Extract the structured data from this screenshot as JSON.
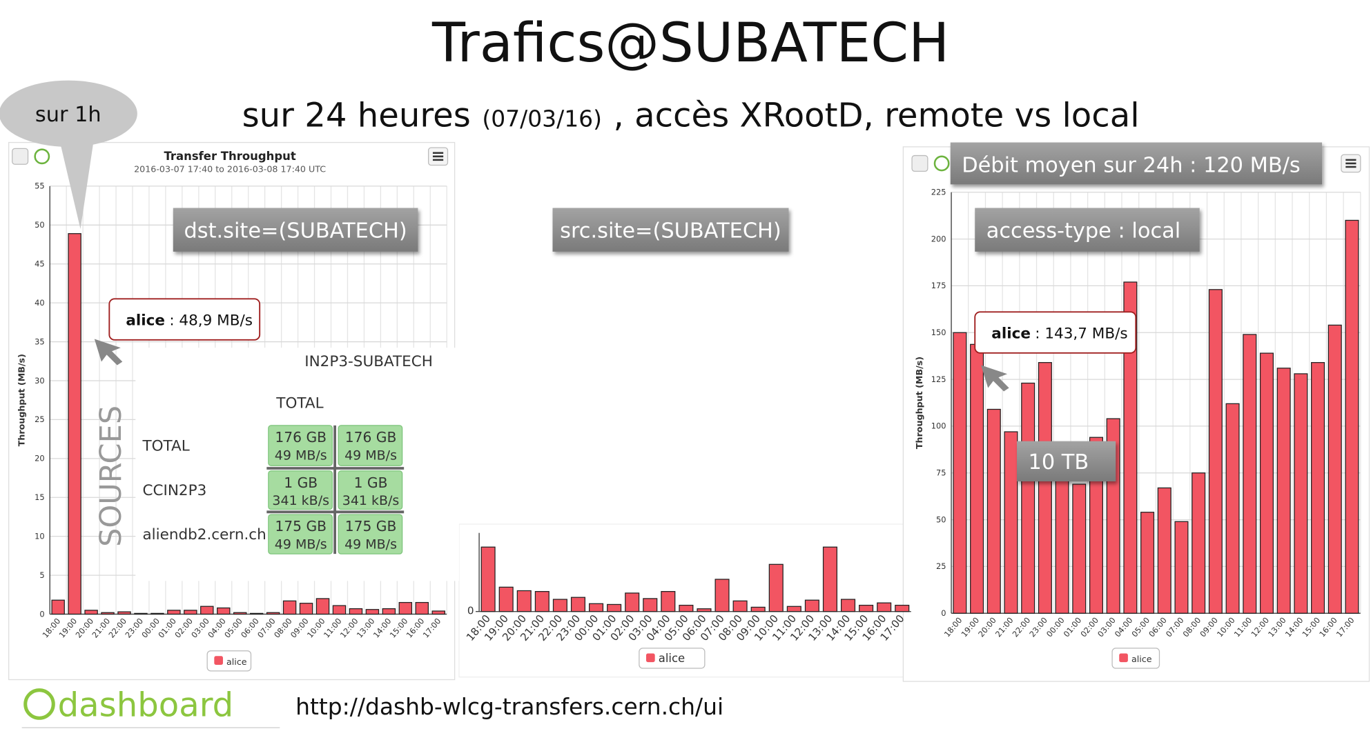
{
  "title": "Trafics@SUBATECH",
  "subtitle": {
    "main": "sur 24 heures",
    "date": "(07/03/16)",
    "rest": ", accès XRootD, remote vs local"
  },
  "callout": "sur 1h",
  "labels": {
    "dst": "dst.site=(SUBATECH)",
    "src": "src.site=(SUBATECH)",
    "access": "access-type :  local",
    "average": "Débit moyen sur 24h : 120 MB/s",
    "volume": "10 TB"
  },
  "point_notes": [
    {
      "name": "alice",
      "text": ": 48,9 MB/s"
    },
    {
      "name": "alice",
      "text": ": 143,7 MB/s"
    }
  ],
  "sources_label": "SOURCES",
  "table": {
    "title": "IN2P3-SUBATECH",
    "header": "TOTAL",
    "rows": [
      {
        "label": "TOTAL",
        "cells": [
          {
            "size": "176 GB",
            "rate": "49 MB/s"
          },
          {
            "size": "176 GB",
            "rate": "49 MB/s"
          }
        ]
      },
      {
        "label": "CCIN2P3",
        "cells": [
          {
            "size": "1 GB",
            "rate": "341 kB/s"
          },
          {
            "size": "1 GB",
            "rate": "341 kB/s"
          }
        ]
      },
      {
        "label": "aliendb2.cern.ch",
        "cells": [
          {
            "size": "175 GB",
            "rate": "49 MB/s"
          },
          {
            "size": "175 GB",
            "rate": "49 MB/s"
          }
        ]
      }
    ]
  },
  "footer": {
    "logo": "dashboard",
    "url": "http://dashb-wlcg-transfers.cern.ch/ui"
  },
  "chart_data": [
    {
      "type": "bar",
      "title": "Transfer Throughput",
      "subtitle": "2016-03-07 17:40 to 2016-03-08 17:40 UTC",
      "y_label": "Throughput (MB/s)",
      "categories": [
        "18:00",
        "19:00",
        "20:00",
        "21:00",
        "22:00",
        "23:00",
        "00:00",
        "01:00",
        "02:00",
        "03:00",
        "04:00",
        "05:00",
        "06:00",
        "07:00",
        "08:00",
        "09:00",
        "10:00",
        "11:00",
        "12:00",
        "13:00",
        "14:00",
        "15:00",
        "16:00",
        "17:00"
      ],
      "series": [
        {
          "name": "alice",
          "color": "#f25562",
          "values": [
            1.8,
            48.9,
            0.5,
            0.2,
            0.3,
            0.1,
            0.1,
            0.5,
            0.5,
            1.0,
            0.8,
            0.2,
            0.1,
            0.2,
            1.7,
            1.4,
            2.0,
            1.1,
            0.7,
            0.6,
            0.7,
            1.5,
            1.5,
            0.4
          ]
        }
      ],
      "ylim": [
        0,
        55
      ],
      "yticks": [
        0,
        5,
        10,
        15,
        20,
        25,
        30,
        35,
        40,
        45,
        50,
        55
      ],
      "grid": true
    },
    {
      "type": "bar",
      "categories": [
        "18:00",
        "19:00",
        "20:00",
        "21:00",
        "22:00",
        "23:00",
        "00:00",
        "01:00",
        "02:00",
        "03:00",
        "04:00",
        "05:00",
        "06:00",
        "07:00",
        "08:00",
        "09:00",
        "10:00",
        "11:00",
        "12:00",
        "13:00",
        "14:00",
        "15:00",
        "16:00",
        "17:00"
      ],
      "series": [
        {
          "name": "alice",
          "color": "#f25562",
          "values": [
            1.64,
            0.62,
            0.53,
            0.51,
            0.31,
            0.36,
            0.2,
            0.18,
            0.47,
            0.33,
            0.51,
            0.16,
            0.07,
            0.82,
            0.27,
            0.11,
            1.2,
            0.13,
            0.29,
            1.64,
            0.31,
            0.16,
            0.22,
            0.16
          ]
        }
      ],
      "ylim": [
        0,
        2
      ],
      "yticks": [
        0
      ],
      "grid": false
    },
    {
      "type": "bar",
      "y_label": "Throughput (MB/s)",
      "categories": [
        "18:00",
        "19:00",
        "20:00",
        "21:00",
        "22:00",
        "23:00",
        "00:00",
        "01:00",
        "02:00",
        "03:00",
        "04:00",
        "05:00",
        "06:00",
        "07:00",
        "08:00",
        "09:00",
        "10:00",
        "11:00",
        "12:00",
        "13:00",
        "14:00",
        "15:00",
        "16:00",
        "17:00"
      ],
      "series": [
        {
          "name": "alice",
          "color": "#f25562",
          "values": [
            150,
            143.7,
            109,
            97,
            123,
            134,
            80,
            69,
            94,
            104,
            177,
            54,
            67,
            49,
            75,
            173,
            112,
            149,
            139,
            131,
            128,
            134,
            154,
            210
          ]
        }
      ],
      "ylim": [
        0,
        225
      ],
      "yticks": [
        0,
        25,
        50,
        75,
        100,
        125,
        150,
        175,
        200,
        225
      ],
      "grid": true
    }
  ]
}
